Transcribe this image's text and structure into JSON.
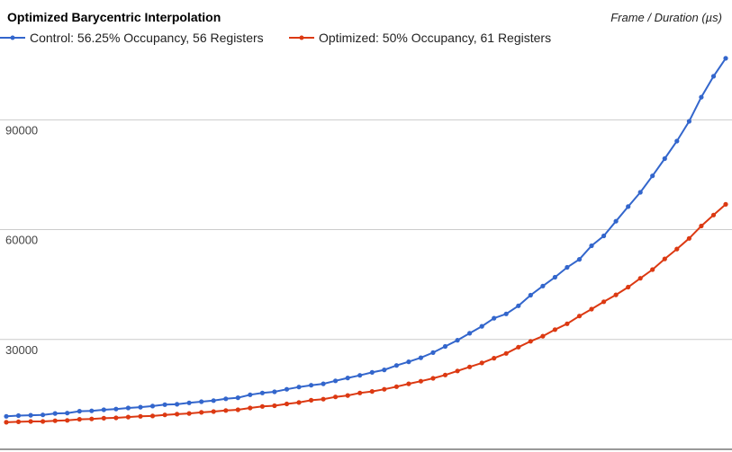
{
  "chart_data": {
    "type": "line",
    "title": "Optimized Barycentric Interpolation",
    "ylabel": "Frame / Duration (µs)",
    "xlabel": "",
    "ylim": [
      0,
      108000
    ],
    "yticks": [
      30000,
      60000,
      90000
    ],
    "grid": true,
    "legend_position": "top-left",
    "x": [
      1,
      2,
      3,
      4,
      5,
      6,
      7,
      8,
      9,
      10,
      11,
      12,
      13,
      14,
      15,
      16,
      17,
      18,
      19,
      20,
      21,
      22,
      23,
      24,
      25,
      26,
      27,
      28,
      29,
      30,
      31,
      32,
      33,
      34,
      35,
      36,
      37,
      38,
      39,
      40,
      41,
      42,
      43,
      44,
      45,
      46,
      47,
      48,
      49,
      50,
      51,
      52,
      53,
      54,
      55,
      56,
      57,
      58,
      59,
      60
    ],
    "series": [
      {
        "name": "Control: 56.25% Occupancy, 56 Registers",
        "color": "#3366cc",
        "values": [
          9000,
          9200,
          9300,
          9400,
          9800,
          9900,
          10400,
          10500,
          10800,
          11000,
          11300,
          11500,
          11800,
          12200,
          12300,
          12700,
          13000,
          13300,
          13800,
          14100,
          14900,
          15400,
          15700,
          16400,
          17000,
          17500,
          17900,
          18700,
          19500,
          20200,
          21000,
          21700,
          22900,
          23900,
          25000,
          26400,
          28100,
          29800,
          31700,
          33600,
          35800,
          37000,
          39200,
          42100,
          44600,
          47000,
          49700,
          51900,
          55600,
          58300,
          62300,
          66300,
          70200,
          74700,
          79400,
          84200,
          89600,
          96200,
          101900,
          106800
        ]
      },
      {
        "name": "Optimized: 50% Occupancy, 61 Registers",
        "color": "#dc3912",
        "values": [
          7400,
          7500,
          7600,
          7600,
          7800,
          7900,
          8200,
          8300,
          8500,
          8600,
          8800,
          9000,
          9100,
          9400,
          9600,
          9800,
          10100,
          10300,
          10600,
          10800,
          11300,
          11700,
          11900,
          12400,
          12800,
          13400,
          13700,
          14300,
          14700,
          15400,
          15800,
          16400,
          17100,
          17900,
          18600,
          19400,
          20300,
          21400,
          22500,
          23600,
          24900,
          26200,
          27900,
          29500,
          30900,
          32700,
          34300,
          36400,
          38300,
          40300,
          42200,
          44300,
          46700,
          49100,
          52000,
          54700,
          57600,
          61000,
          64000,
          66900
        ]
      }
    ]
  }
}
